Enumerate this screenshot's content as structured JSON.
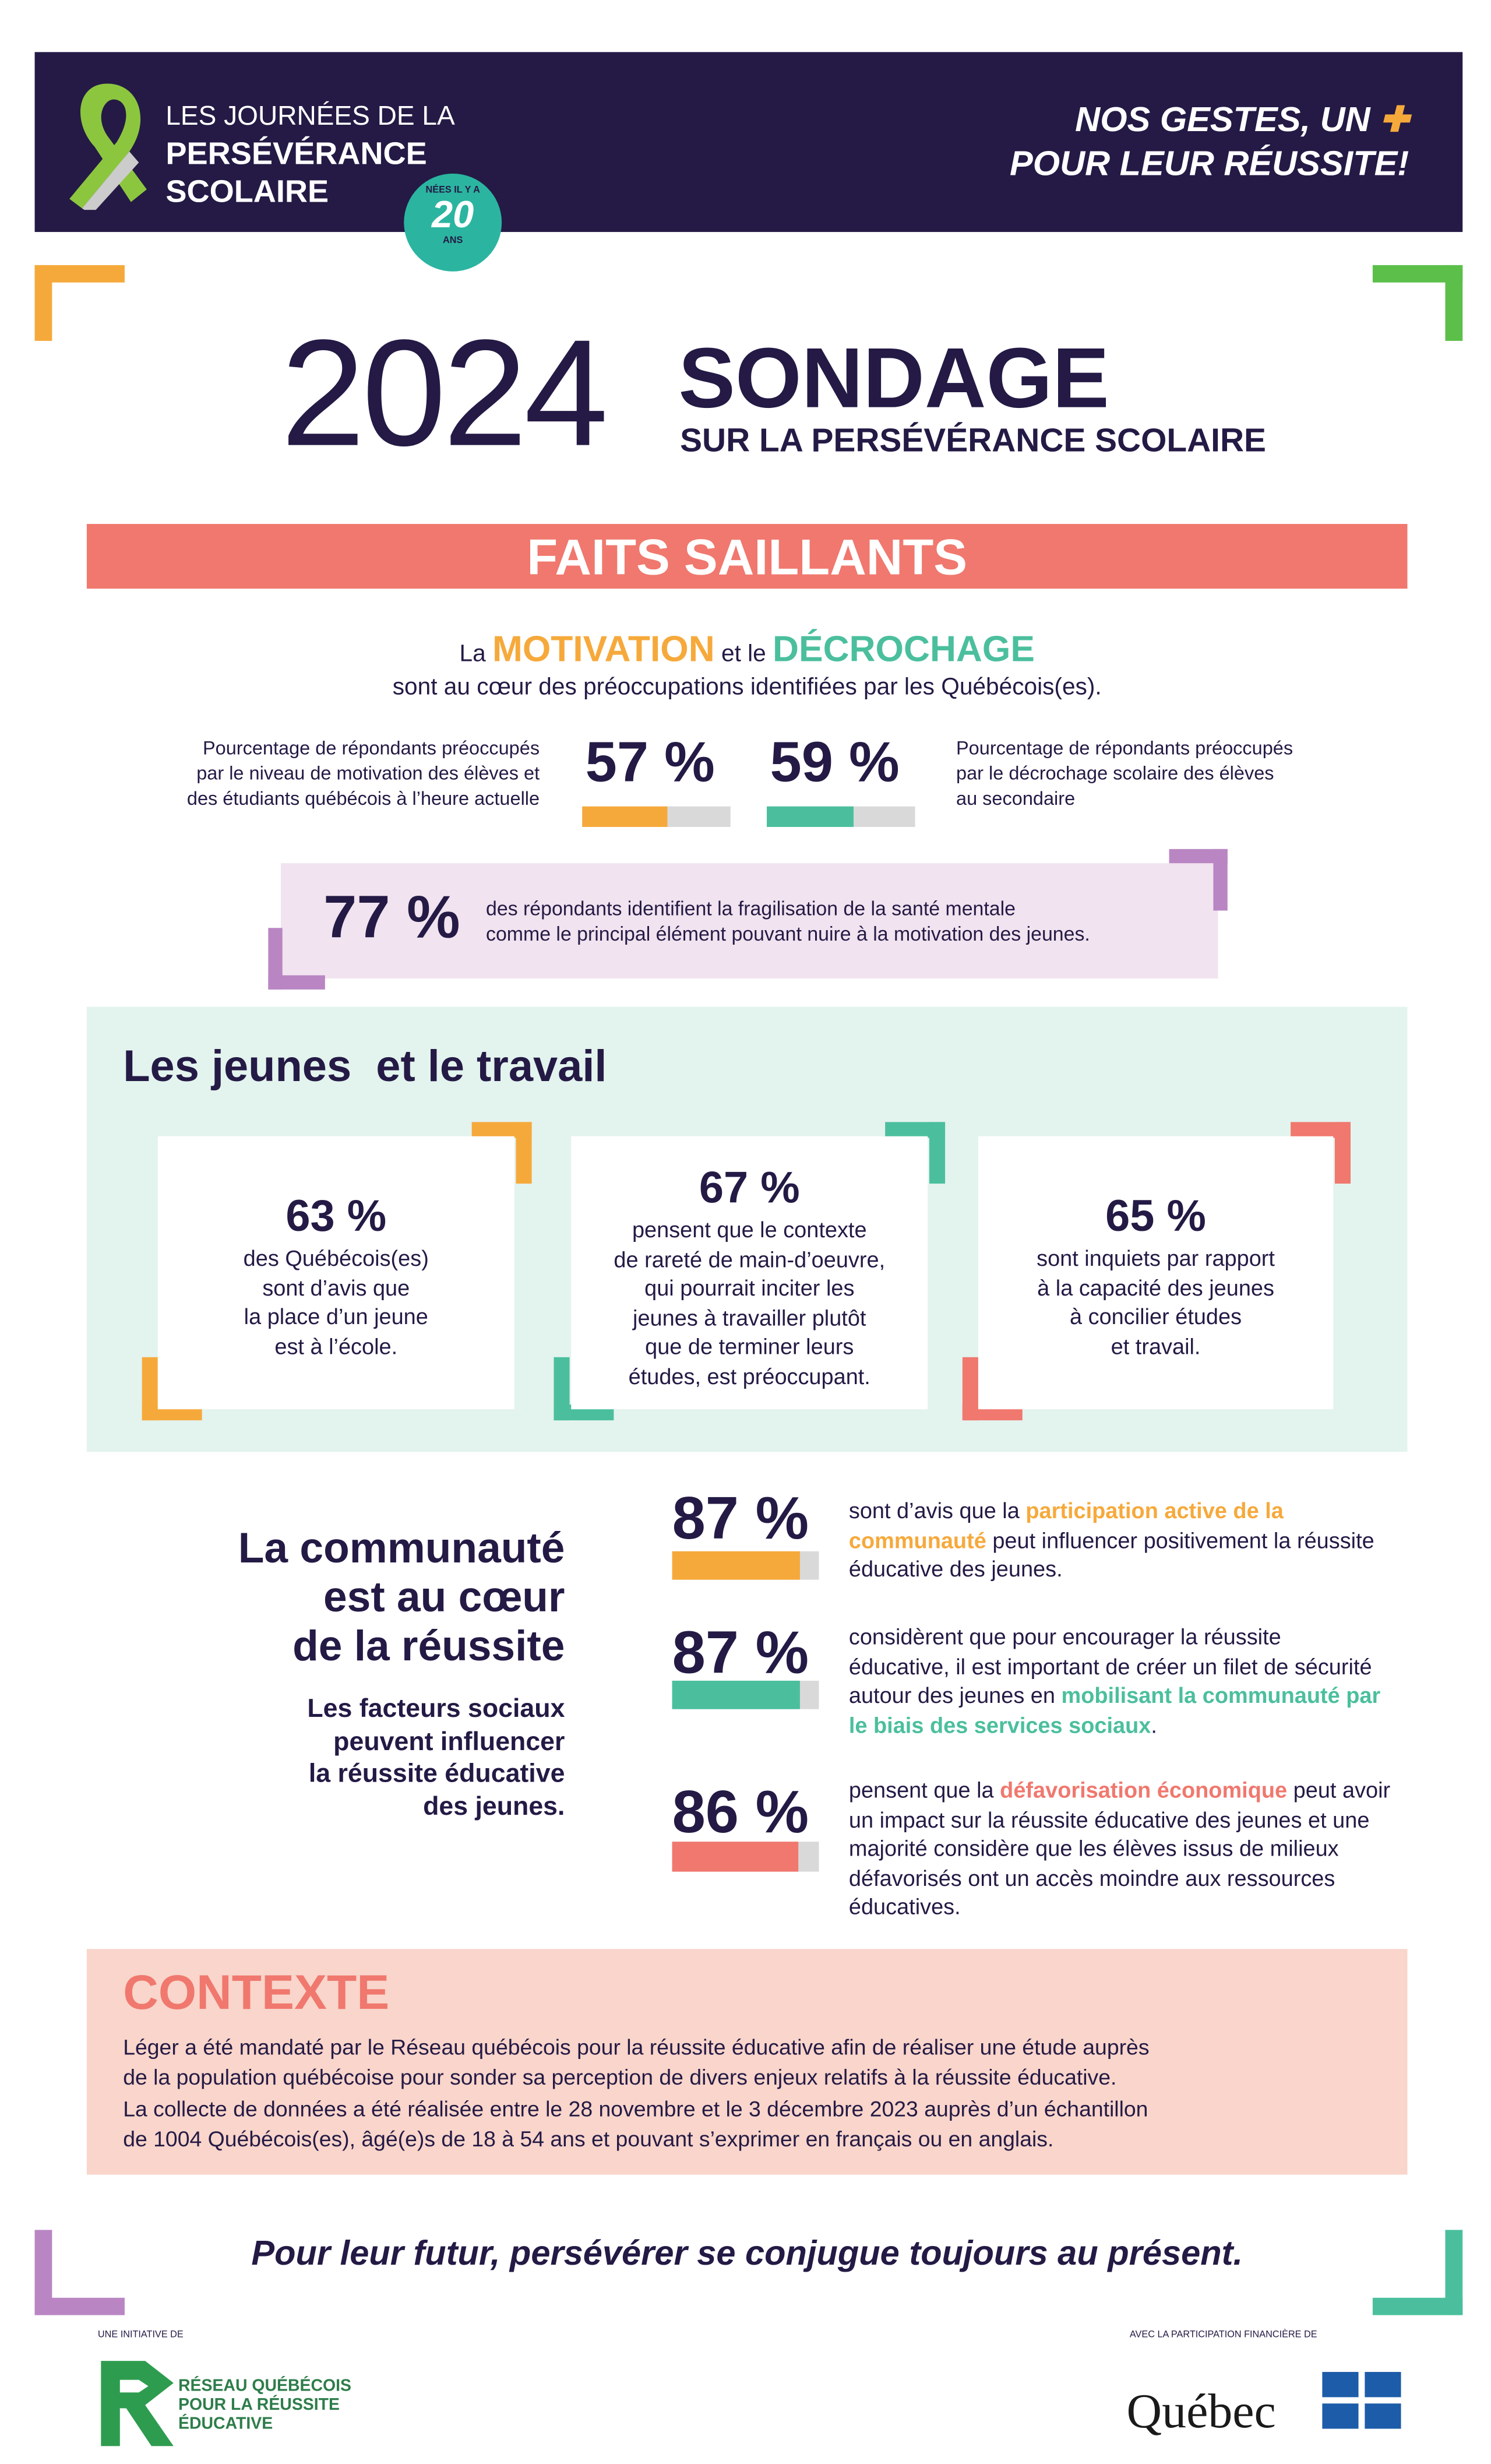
{
  "header": {
    "logo_lines": [
      "LES JOURNÉES DE LA",
      "PERSÉVÉRANCE",
      "SCOLAIRE"
    ],
    "badge": {
      "top": "NÉES IL Y A",
      "number": "20",
      "bottom": "ANS"
    },
    "slogan": [
      "NOS GESTES, UN",
      "POUR LEUR RÉUSSITE!"
    ]
  },
  "title": {
    "year": "2024",
    "main": "SONDAGE",
    "sub": "SUR LA PERSÉVÉRANCE SCOLAIRE"
  },
  "highlights": {
    "heading": "FAITS SAILLANTS",
    "intro": [
      "La ",
      "MOTIVATION",
      " et le ",
      "DÉCROCHAGE"
    ],
    "intro_sub": "sont au cœur des préoccupations identifiées par les Québécois(es).",
    "motivation": {
      "value": 57,
      "label": "57 %",
      "text": [
        "Pourcentage de répondants préoccupés",
        "par le niveau de motivation des élèves et",
        "des étudiants québécois à l’heure actuelle"
      ]
    },
    "dropout": {
      "value": 59,
      "label": "59 %",
      "text": [
        "Pourcentage de répondants préoccupés",
        "par le décrochage scolaire des élèves",
        "au secondaire"
      ]
    },
    "mental_health": {
      "label": "77 %",
      "text": [
        "des répondants identifient la fragilisation de la santé mentale",
        "comme le principal élément pouvant nuire à la motivation des jeunes."
      ]
    }
  },
  "work": {
    "heading": "Les jeunes  et le travail",
    "cards": [
      {
        "label": "63 %",
        "text": [
          "des Québécois(es)",
          "sont d’avis que",
          "la place d’un jeune",
          "est à l’école."
        ]
      },
      {
        "label": "67 %",
        "text": [
          "pensent que le contexte",
          "de rareté de main-d’oeuvre,",
          "qui pourrait inciter les",
          "jeunes à travailler plutôt",
          "que de terminer leurs",
          "études, est préoccupant."
        ]
      },
      {
        "label": "65 %",
        "text": [
          "sont inquiets par rapport",
          "à la capacité des jeunes",
          "à concilier études",
          "et travail."
        ]
      }
    ]
  },
  "community": {
    "heading": [
      "La communauté",
      "est au cœur",
      "de la réussite"
    ],
    "subheading": [
      "Les facteurs sociaux",
      "peuvent influencer",
      "la réussite éducative",
      "des jeunes."
    ],
    "stats": [
      {
        "value": 87,
        "label": "87 %",
        "text": [
          "sont d’avis que la ",
          "participation active de la communauté",
          " peut influencer positivement la réussite éducative des jeunes."
        ]
      },
      {
        "value": 87,
        "label": "87 %",
        "text": [
          "considèrent que pour encourager la réussite éducative, il est important de créer un filet de sécurité autour des jeunes en ",
          "mobilisant la communauté par le biais des services sociaux",
          "."
        ]
      },
      {
        "value": 86,
        "label": "86 %",
        "text": [
          "pensent que la ",
          "défavorisation économique",
          " peut avoir un impact sur la réussite éducative des jeunes et une majorité considère que les élèves issus de milieux défavorisés ont un accès moindre aux ressources éducatives."
        ]
      }
    ]
  },
  "context": {
    "heading": "CONTEXTE",
    "lines": [
      "Léger a été mandaté par le Réseau québécois pour la réussite éducative afin de réaliser une étude auprès",
      "de la population québécoise pour sonder sa perception de divers enjeux relatifs à la réussite éducative.",
      "La collecte de données a été réalisée entre le 28 novembre et le 3 décembre 2023 auprès d’un échantillon",
      "de 1004 Québécois(es), âgé(e)s de 18 à 54 ans et pouvant s’exprimer en français ou en anglais."
    ]
  },
  "footer": {
    "slogan": "Pour leur futur, persévérer se conjugue toujours au présent.",
    "initiative_label": "UNE INITIATIVE DE",
    "reseau_lines": [
      "RÉSEAU QUÉBÉCOIS",
      "POUR LA RÉUSSITE",
      "ÉDUCATIVE"
    ],
    "funding_label": "AVEC LA PARTICIPATION FINANCIÈRE DE",
    "quebec": "Québec"
  }
}
